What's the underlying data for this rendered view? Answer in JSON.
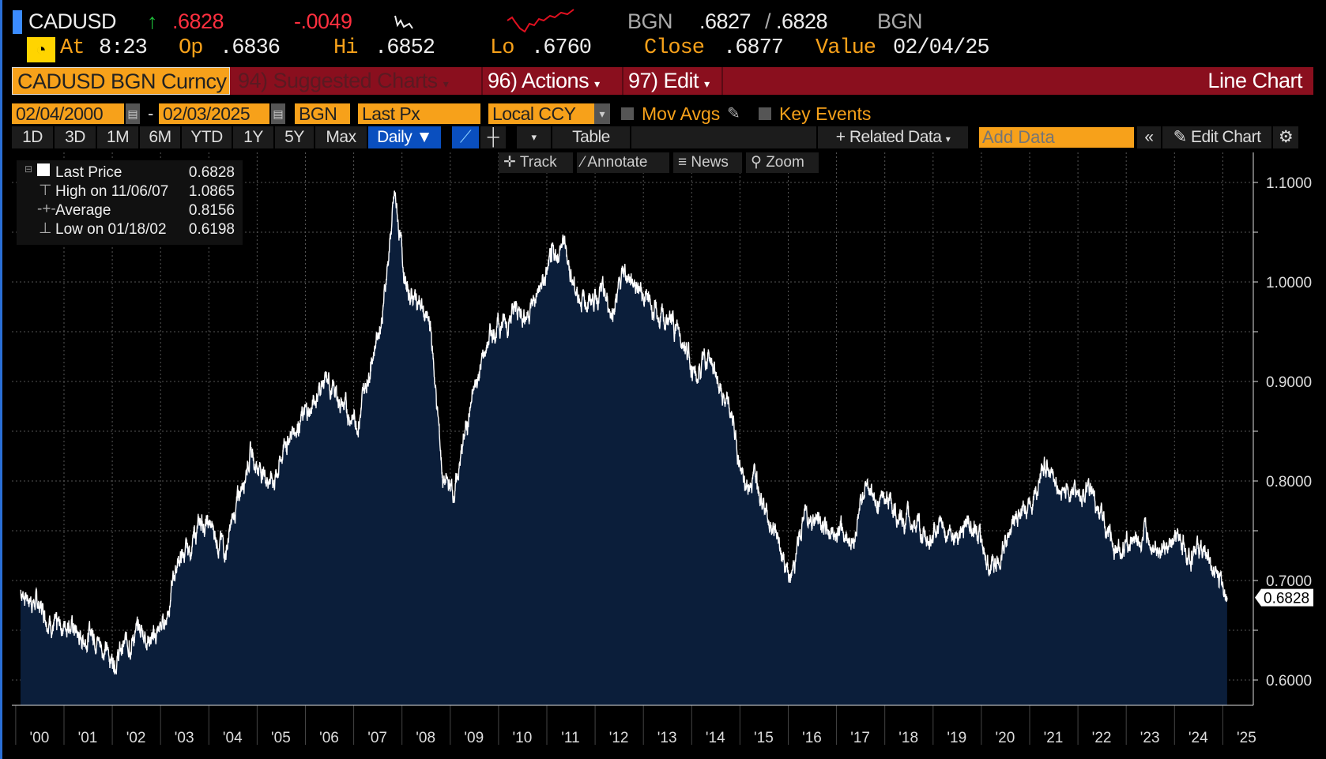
{
  "header": {
    "ticker": "CADUSD",
    "last": ".6828",
    "change": "-.0049",
    "source": "BGN",
    "bid": ".6827",
    "ask": ".6828",
    "source2": "BGN",
    "at_label": "At",
    "time": "8:23",
    "open_label": "Op",
    "open": ".6836",
    "high_label": "Hi",
    "high": ".6852",
    "low_label": "Lo",
    "low": ".6760",
    "close_label": "Close",
    "close": ".6877",
    "value_label": "Value",
    "value_date": "02/04/25"
  },
  "menubar": {
    "security": "CADUSD BGN Curncy",
    "suggested": "94) Suggested Charts",
    "actions": "96) Actions",
    "edit": "97) Edit",
    "chart_type": "Line Chart"
  },
  "params": {
    "start_date": "02/04/2000",
    "end_date": "02/03/2025",
    "source": "BGN",
    "field": "Last Px",
    "currency": "Local CCY",
    "mov_avgs": "Mov Avgs",
    "key_events": "Key Events"
  },
  "toolbar": {
    "periods": [
      "1D",
      "3D",
      "1M",
      "6M",
      "YTD",
      "1Y",
      "5Y",
      "Max"
    ],
    "frequency": "Daily ▼",
    "table": "Table",
    "related": "+ Related Data",
    "add_data_placeholder": "Add Data",
    "collapse": "«",
    "edit_chart": "Edit Chart"
  },
  "chart_tools": [
    "Track",
    "Annotate",
    "News",
    "Zoom"
  ],
  "legend": [
    {
      "label": "Last Price",
      "value": "0.6828"
    },
    {
      "label": "High on 11/06/07",
      "value": "1.0865"
    },
    {
      "label": "Average",
      "value": "0.8156"
    },
    {
      "label": "Low on 01/18/02",
      "value": "0.6198"
    }
  ],
  "colors": {
    "accent": "#f7a11a",
    "bar": "#8a0f1e",
    "area": "#0b1e3a",
    "active": "#0a4fbf"
  },
  "chart_data": {
    "type": "area",
    "title": "CADUSD Line Chart",
    "ylim": [
      0.575,
      1.125
    ],
    "yticks": [
      "0.6000",
      "0.7000",
      "0.8000",
      "0.9000",
      "1.0000",
      "1.1000"
    ],
    "xticks": [
      "'00",
      "'01",
      "'02",
      "'03",
      "'04",
      "'05",
      "'06",
      "'07",
      "'08",
      "'09",
      "'10",
      "'11",
      "'12",
      "'13",
      "'14",
      "'15",
      "'16",
      "'17",
      "'18",
      "'19",
      "'20",
      "'21",
      "'22",
      "'23",
      "'24",
      "'25"
    ],
    "last_label": "0.6828",
    "series": [
      {
        "name": "Last Price",
        "points": [
          [
            2000.1,
            0.69
          ],
          [
            2000.35,
            0.68
          ],
          [
            2000.6,
            0.67
          ],
          [
            2000.85,
            0.65
          ],
          [
            2001.1,
            0.66
          ],
          [
            2001.35,
            0.64
          ],
          [
            2001.6,
            0.65
          ],
          [
            2001.85,
            0.63
          ],
          [
            2002.05,
            0.6198
          ],
          [
            2002.35,
            0.64
          ],
          [
            2002.6,
            0.65
          ],
          [
            2002.85,
            0.64
          ],
          [
            2003.1,
            0.66
          ],
          [
            2003.35,
            0.72
          ],
          [
            2003.6,
            0.73
          ],
          [
            2003.85,
            0.76
          ],
          [
            2004.1,
            0.75
          ],
          [
            2004.35,
            0.73
          ],
          [
            2004.6,
            0.78
          ],
          [
            2004.85,
            0.83
          ],
          [
            2005.1,
            0.81
          ],
          [
            2005.35,
            0.8
          ],
          [
            2005.6,
            0.84
          ],
          [
            2005.85,
            0.86
          ],
          [
            2006.1,
            0.87
          ],
          [
            2006.35,
            0.9
          ],
          [
            2006.6,
            0.89
          ],
          [
            2006.85,
            0.87
          ],
          [
            2007.1,
            0.86
          ],
          [
            2007.35,
            0.92
          ],
          [
            2007.6,
            0.97
          ],
          [
            2007.85,
            1.0865
          ],
          [
            2008.1,
            0.99
          ],
          [
            2008.35,
            0.98
          ],
          [
            2008.6,
            0.95
          ],
          [
            2008.85,
            0.8
          ],
          [
            2009.1,
            0.79
          ],
          [
            2009.35,
            0.86
          ],
          [
            2009.6,
            0.91
          ],
          [
            2009.85,
            0.95
          ],
          [
            2010.1,
            0.96
          ],
          [
            2010.35,
            0.97
          ],
          [
            2010.6,
            0.97
          ],
          [
            2010.85,
            0.99
          ],
          [
            2011.1,
            1.02
          ],
          [
            2011.35,
            1.04
          ],
          [
            2011.6,
            0.99
          ],
          [
            2011.85,
            0.98
          ],
          [
            2012.1,
            0.99
          ],
          [
            2012.35,
            0.97
          ],
          [
            2012.6,
            1.01
          ],
          [
            2012.85,
            1.0
          ],
          [
            2013.1,
            0.98
          ],
          [
            2013.35,
            0.96
          ],
          [
            2013.6,
            0.96
          ],
          [
            2013.85,
            0.94
          ],
          [
            2014.1,
            0.9
          ],
          [
            2014.35,
            0.93
          ],
          [
            2014.6,
            0.89
          ],
          [
            2014.85,
            0.86
          ],
          [
            2015.1,
            0.79
          ],
          [
            2015.35,
            0.81
          ],
          [
            2015.6,
            0.76
          ],
          [
            2015.85,
            0.73
          ],
          [
            2016.05,
            0.7
          ],
          [
            2016.35,
            0.77
          ],
          [
            2016.6,
            0.76
          ],
          [
            2016.85,
            0.75
          ],
          [
            2017.1,
            0.75
          ],
          [
            2017.35,
            0.74
          ],
          [
            2017.6,
            0.8
          ],
          [
            2017.85,
            0.78
          ],
          [
            2018.1,
            0.78
          ],
          [
            2018.35,
            0.76
          ],
          [
            2018.6,
            0.76
          ],
          [
            2018.85,
            0.74
          ],
          [
            2019.1,
            0.75
          ],
          [
            2019.35,
            0.75
          ],
          [
            2019.6,
            0.75
          ],
          [
            2019.85,
            0.76
          ],
          [
            2020.2,
            0.71
          ],
          [
            2020.35,
            0.72
          ],
          [
            2020.6,
            0.75
          ],
          [
            2020.85,
            0.77
          ],
          [
            2021.1,
            0.79
          ],
          [
            2021.35,
            0.82
          ],
          [
            2021.6,
            0.79
          ],
          [
            2021.85,
            0.79
          ],
          [
            2022.1,
            0.79
          ],
          [
            2022.35,
            0.78
          ],
          [
            2022.6,
            0.75
          ],
          [
            2022.85,
            0.73
          ],
          [
            2023.1,
            0.74
          ],
          [
            2023.35,
            0.74
          ],
          [
            2023.6,
            0.74
          ],
          [
            2023.85,
            0.73
          ],
          [
            2024.1,
            0.74
          ],
          [
            2024.35,
            0.73
          ],
          [
            2024.6,
            0.73
          ],
          [
            2024.85,
            0.71
          ],
          [
            2025.09,
            0.6828
          ]
        ]
      }
    ]
  }
}
